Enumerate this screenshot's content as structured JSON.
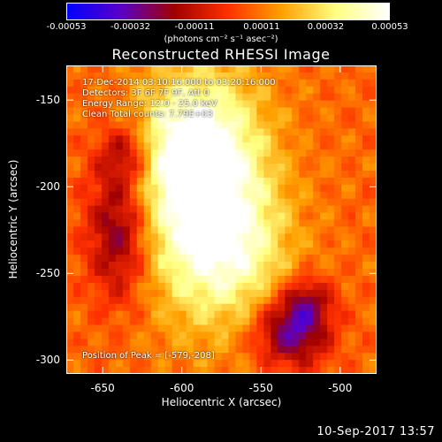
{
  "colorbar": {
    "ticks": [
      "-0.00053",
      "-0.00032",
      "-0.00011",
      "0.00011",
      "0.00032",
      "0.00053"
    ],
    "tick_values": [
      -0.00053,
      -0.00032,
      -0.00011,
      0.00011,
      0.00032,
      0.00053
    ],
    "units": "(photons cm⁻² s⁻¹ asec⁻²)",
    "colors": [
      "#0000ff",
      "#5a00c8",
      "#a00000",
      "#ff3000",
      "#ffa000",
      "#ffff80",
      "#ffffff"
    ]
  },
  "annotations": {
    "time_range": "17-Dec-2014 03:10:16.000 to 03:20:16.000",
    "detectors": "Detectors: 3F 6F 7F 9F, Att 0",
    "energy": "Energy Range: 12.0 - 25.0 keV",
    "clean": "Clean    Total counts: 7.79E+03",
    "peak": "Position of Peak = [-579,-208]"
  },
  "timestamp": "10-Sep-2017 13:57",
  "chart_data": {
    "type": "heatmap",
    "title": "Reconstructed RHESSI Image",
    "xlabel": "Heliocentric X (arcsec)",
    "ylabel": "Heliocentric Y (arcsec)",
    "xlim": [
      -673,
      -477
    ],
    "ylim": [
      -308,
      -130
    ],
    "xticks": [
      -650,
      -600,
      -550,
      -500
    ],
    "xtick_labels": [
      "-650",
      "-600",
      "-550",
      "-500"
    ],
    "yticks": [
      -150,
      -200,
      -250,
      -300
    ],
    "ytick_labels": [
      "-150",
      "-200",
      "-250",
      "-300"
    ],
    "value_range": [
      -0.00053,
      0.00053
    ],
    "peak": {
      "x": -579,
      "y": -208
    },
    "blobs": [
      {
        "x": -585,
        "y": -205,
        "sigma_x": 28,
        "sigma_y": 45,
        "amp": 1.0
      },
      {
        "x": -600,
        "y": -175,
        "sigma_x": 22,
        "sigma_y": 25,
        "amp": 0.35
      },
      {
        "x": -560,
        "y": -240,
        "sigma_x": 25,
        "sigma_y": 25,
        "amp": 0.25
      },
      {
        "x": -640,
        "y": -225,
        "sigma_x": 14,
        "sigma_y": 28,
        "amp": -0.65
      },
      {
        "x": -635,
        "y": -180,
        "sigma_x": 12,
        "sigma_y": 12,
        "amp": -0.45
      },
      {
        "x": -530,
        "y": -283,
        "sigma_x": 16,
        "sigma_y": 14,
        "amp": -0.8
      },
      {
        "x": -520,
        "y": -265,
        "sigma_x": 10,
        "sigma_y": 10,
        "amp": -0.4
      }
    ]
  }
}
